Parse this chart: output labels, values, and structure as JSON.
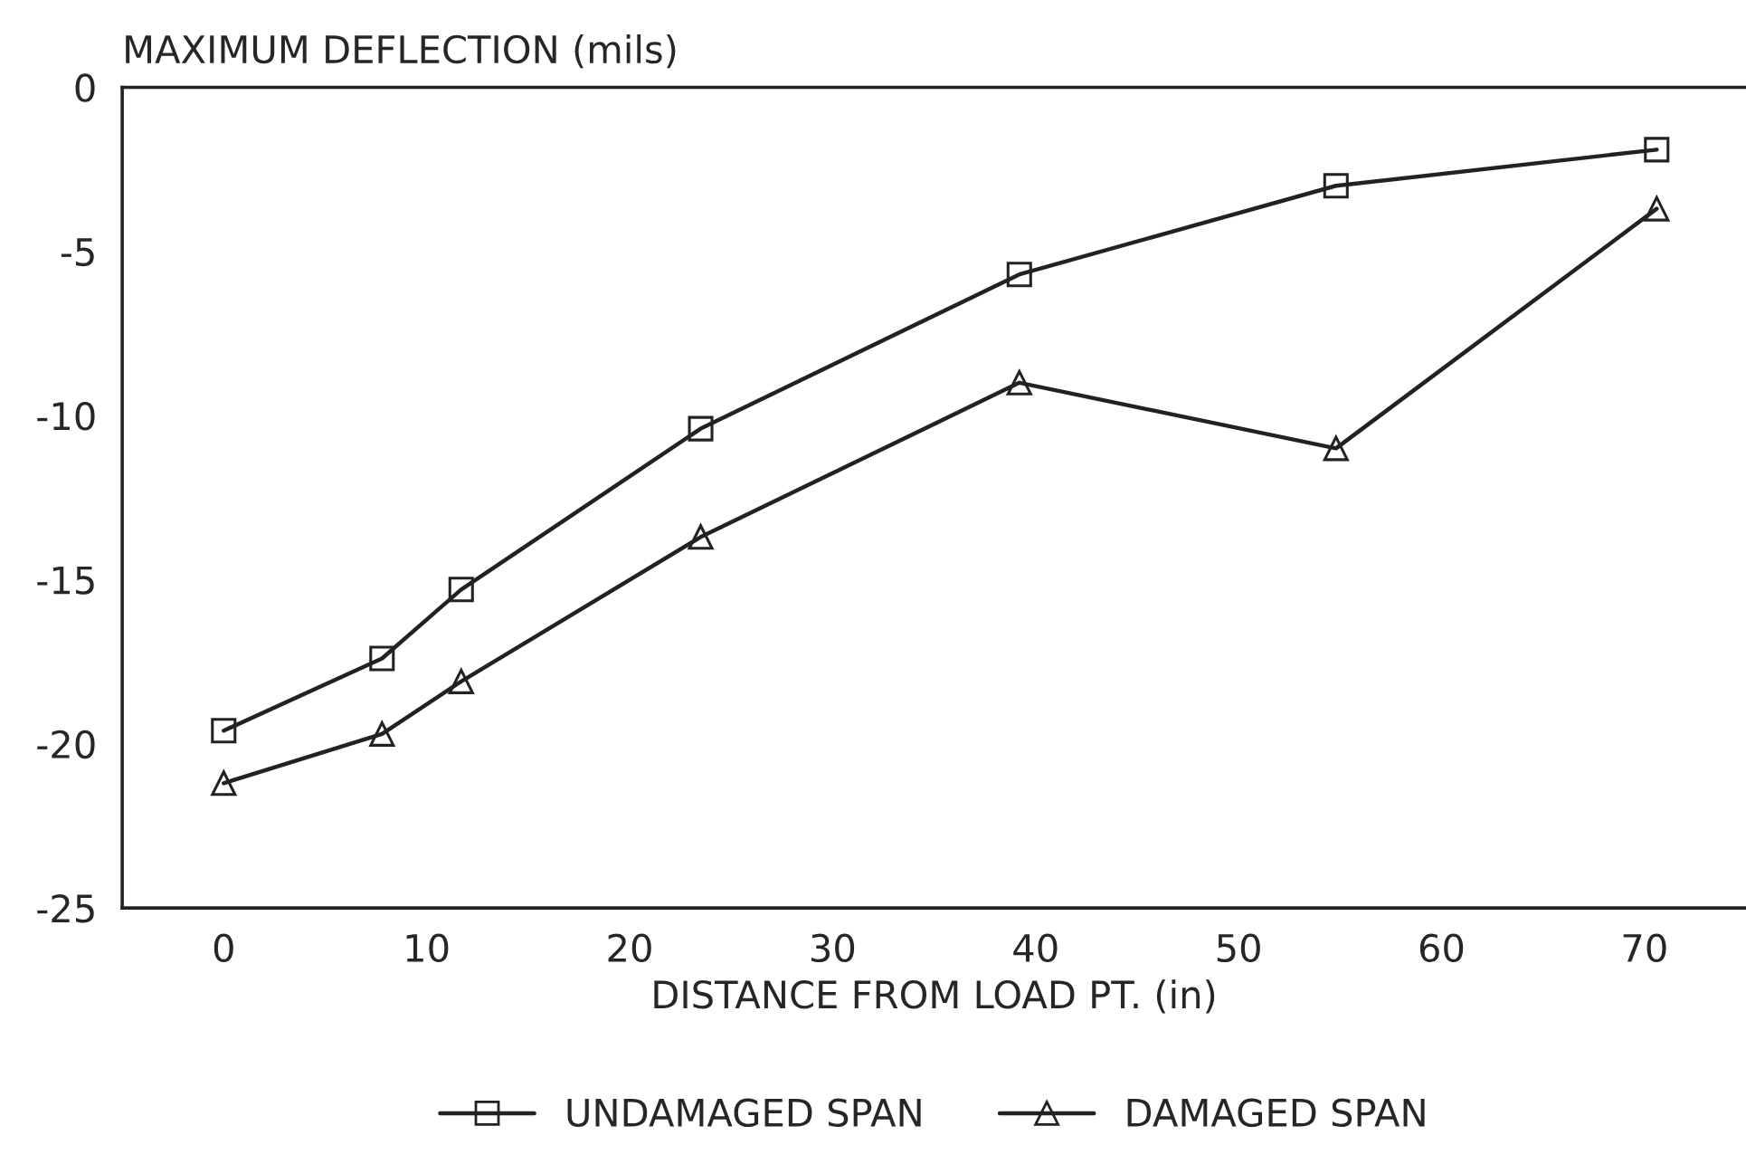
{
  "chart_data": {
    "type": "line",
    "ylabel": "MAXIMUM DEFLECTION (mils)",
    "xlabel": "DISTANCE FROM LOAD PT. (in)",
    "xlim": [
      -5,
      75
    ],
    "xticks": [
      0,
      10,
      20,
      30,
      40,
      50,
      60,
      70
    ],
    "ylim": [
      -25,
      0
    ],
    "yticks": [
      -25,
      -20,
      -15,
      -10,
      -5,
      0
    ],
    "grid": false,
    "legend": "bottom",
    "line_style": "solid",
    "series": [
      {
        "name": "UNDAMAGED SPAN",
        "color": "#222222",
        "marker": "square",
        "x": [
          0,
          7.8,
          11.7,
          23.5,
          39.2,
          54.8,
          70.6
        ],
        "values": [
          -19.6,
          -17.4,
          -15.3,
          -10.4,
          -5.7,
          -3.0,
          -1.9
        ]
      },
      {
        "name": "DAMAGED SPAN",
        "color": "#222222",
        "marker": "triangle",
        "x": [
          0,
          7.8,
          11.7,
          23.5,
          39.2,
          54.8,
          70.6
        ],
        "values": [
          -21.2,
          -19.7,
          -18.1,
          -13.7,
          -9.0,
          -11.0,
          -3.7
        ]
      }
    ]
  }
}
